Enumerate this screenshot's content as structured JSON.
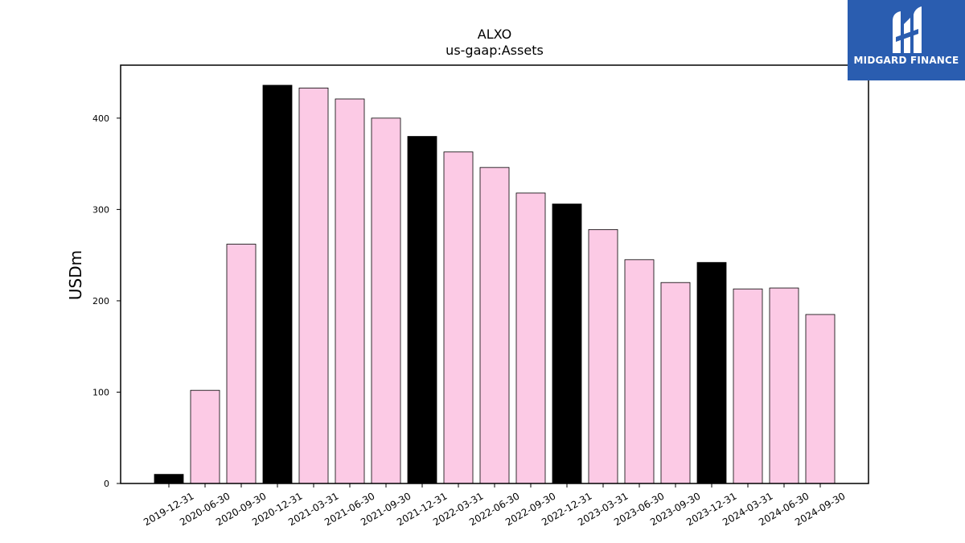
{
  "chart_data": {
    "type": "bar",
    "title": "ALXO",
    "subtitle": "us-gaap:Assets",
    "xlabel": "",
    "ylabel": "USDm",
    "ylim": [
      0,
      458
    ],
    "yticks": [
      0,
      100,
      200,
      300,
      400
    ],
    "grid": false,
    "categories": [
      "2019-12-31",
      "2020-06-30",
      "2020-09-30",
      "2020-12-31",
      "2021-03-31",
      "2021-06-30",
      "2021-09-30",
      "2021-12-31",
      "2022-03-31",
      "2022-06-30",
      "2022-09-30",
      "2022-12-31",
      "2023-03-31",
      "2023-06-30",
      "2023-09-30",
      "2023-12-31",
      "2024-03-31",
      "2024-06-30",
      "2024-09-30"
    ],
    "values": [
      10,
      102,
      262,
      436,
      433,
      421,
      400,
      380,
      363,
      346,
      318,
      306,
      278,
      245,
      220,
      242,
      213,
      214,
      185
    ],
    "highlight": [
      true,
      false,
      false,
      true,
      false,
      false,
      false,
      true,
      false,
      false,
      false,
      true,
      false,
      false,
      false,
      true,
      false,
      false,
      false
    ],
    "colors": {
      "highlight": "#000000",
      "normal": "#fccae5",
      "edge": "#000000"
    }
  },
  "logo": {
    "text": "MIDGARD FINANCE",
    "color": "#2a5db0"
  }
}
